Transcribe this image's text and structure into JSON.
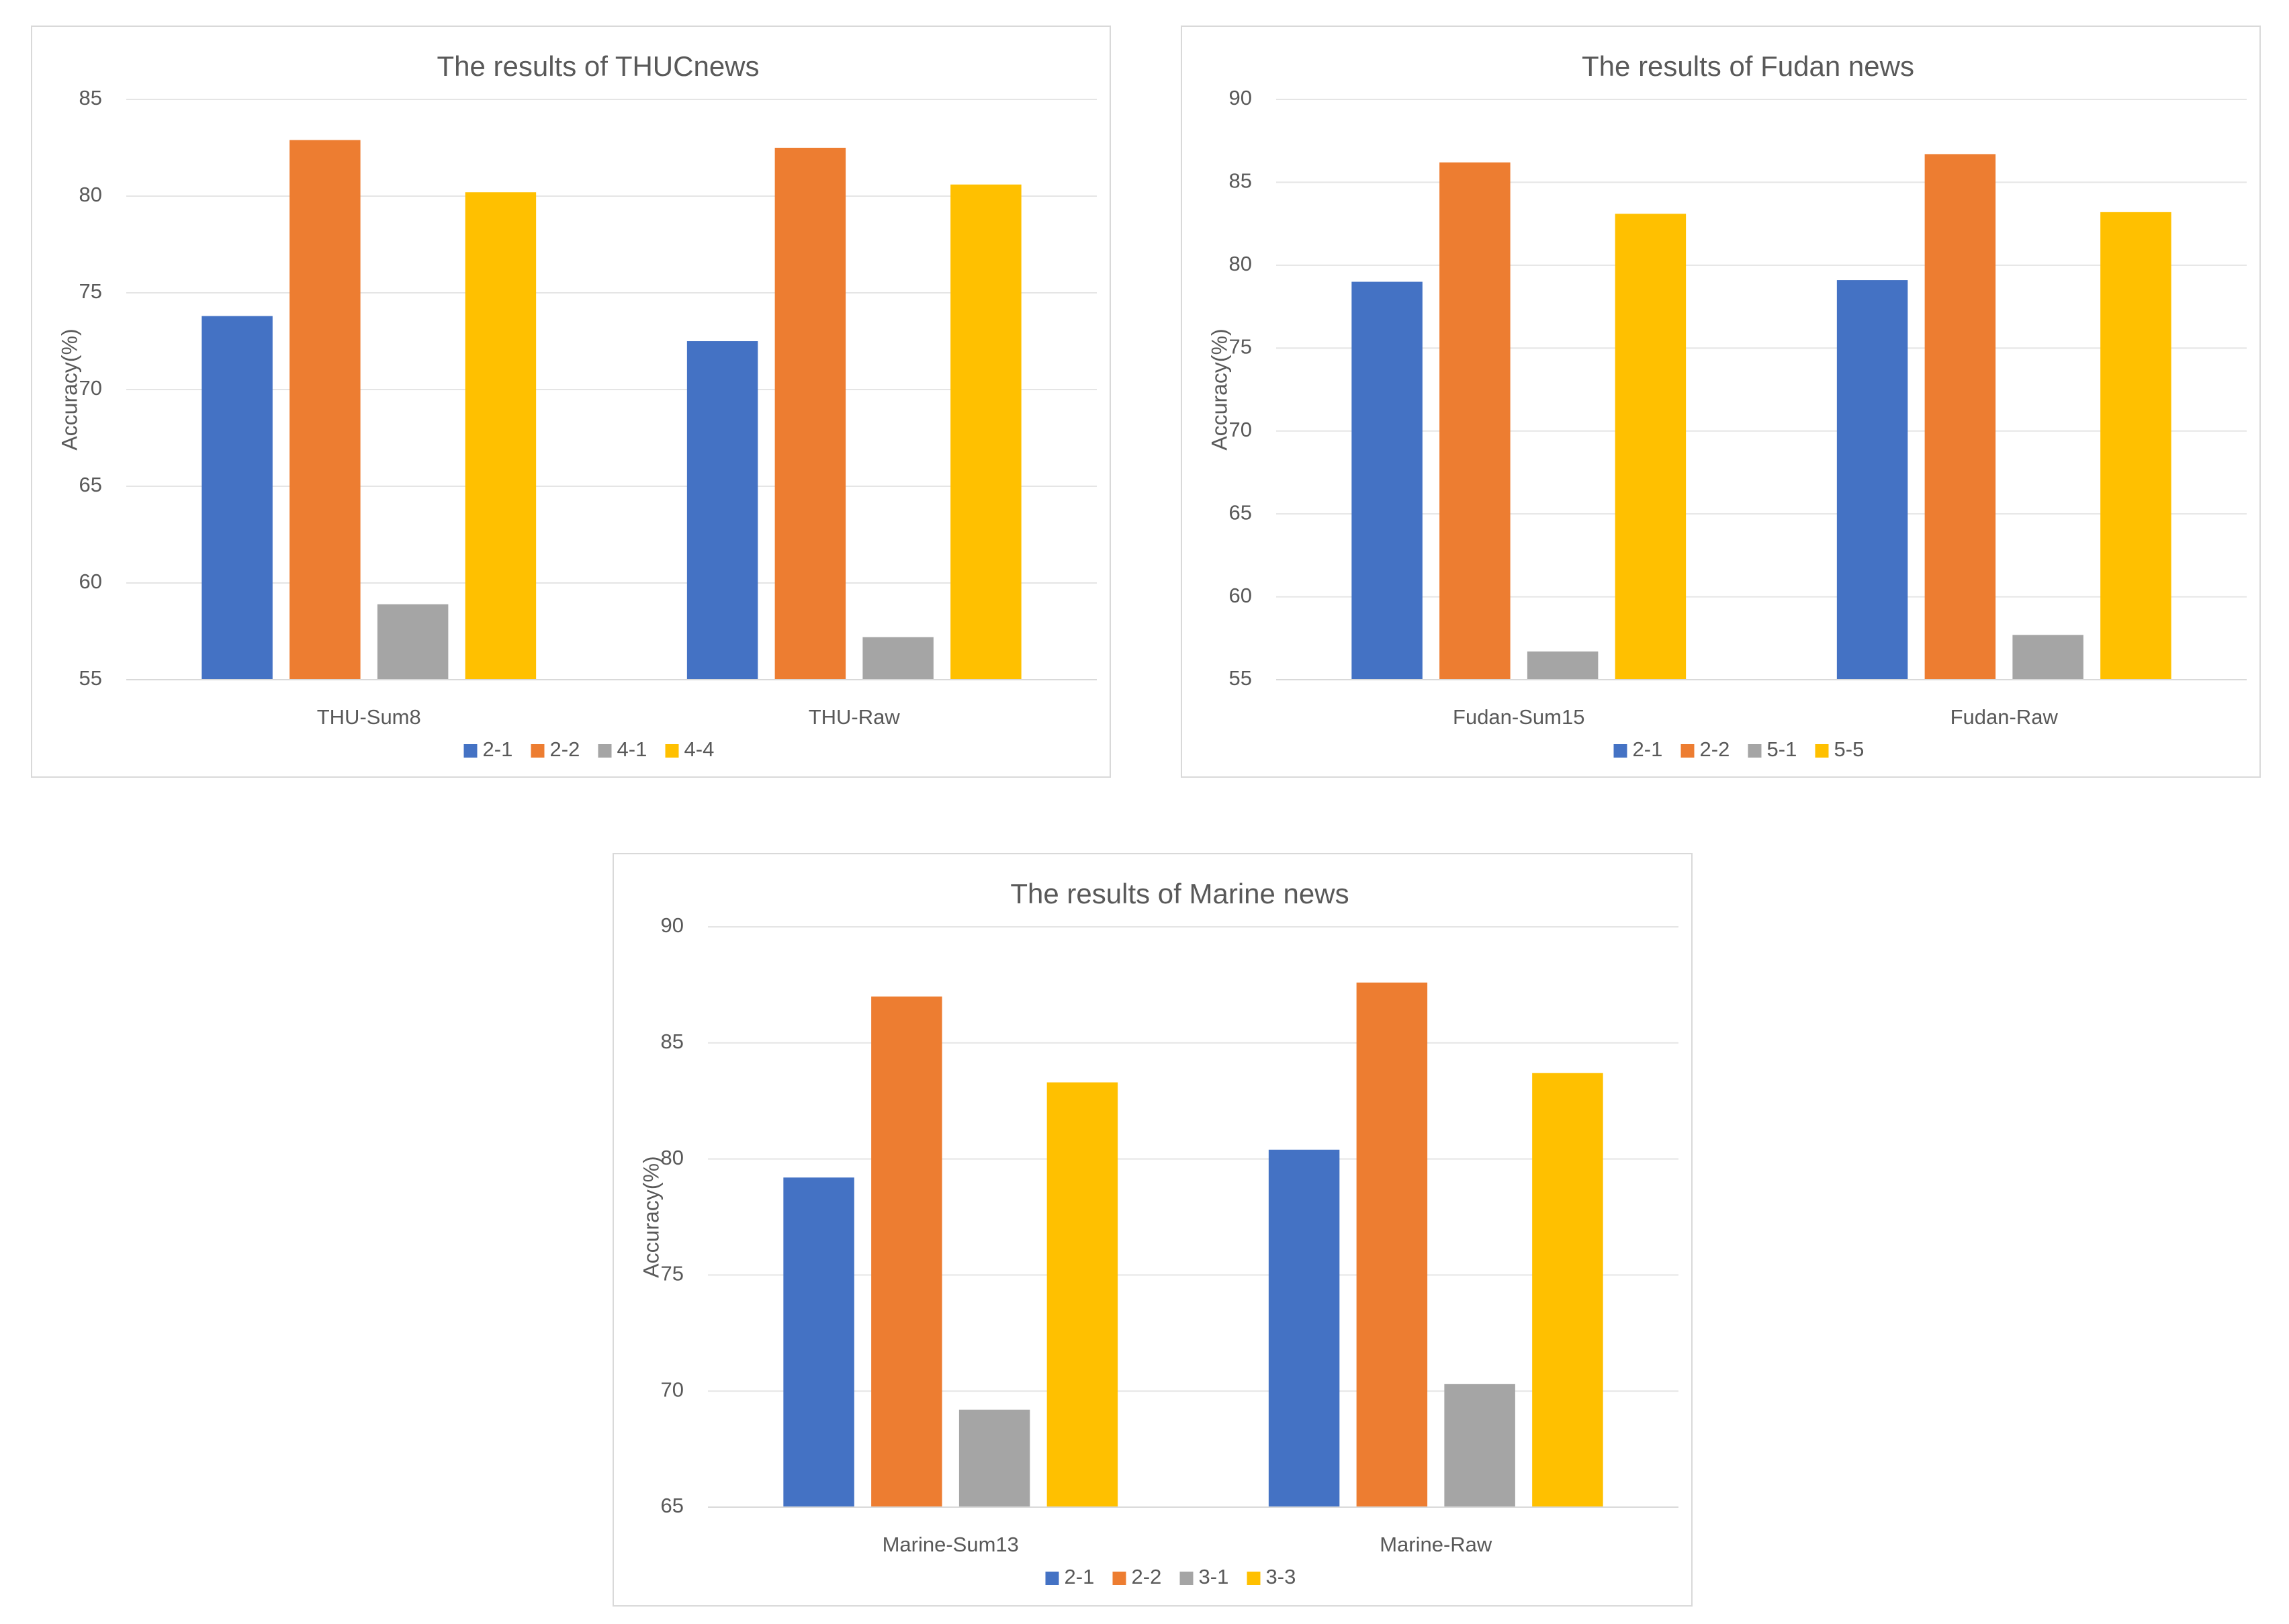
{
  "colors": {
    "blue": "#4472c4",
    "orange": "#ed7d31",
    "gray": "#a5a5a5",
    "gold": "#ffc000",
    "grid": "#e5e5e5",
    "axis": "#d9d9d9",
    "text": "#595959"
  },
  "chart_data": [
    {
      "type": "bar",
      "title": "The results of THUCnews",
      "xlabel": "",
      "ylabel": "Accuracy(%)",
      "ylim": [
        55,
        85
      ],
      "yticks": [
        55,
        60,
        65,
        70,
        75,
        80,
        85
      ],
      "grid": true,
      "legend": "bottom",
      "categories": [
        "THU-Sum8",
        "THU-Raw"
      ],
      "series": [
        {
          "name": "2-1",
          "values": [
            73.8,
            72.5
          ]
        },
        {
          "name": "2-2",
          "values": [
            82.9,
            82.5
          ]
        },
        {
          "name": "4-1",
          "values": [
            58.9,
            57.2
          ]
        },
        {
          "name": "4-4",
          "values": [
            80.2,
            80.6
          ]
        }
      ]
    },
    {
      "type": "bar",
      "title": "The results of Fudan news",
      "xlabel": "",
      "ylabel": "Accuracy(%)",
      "ylim": [
        55,
        90
      ],
      "yticks": [
        55,
        60,
        65,
        70,
        75,
        80,
        85,
        90
      ],
      "grid": true,
      "legend": "bottom",
      "categories": [
        "Fudan-Sum15",
        "Fudan-Raw"
      ],
      "series": [
        {
          "name": "2-1",
          "values": [
            79.0,
            79.1
          ]
        },
        {
          "name": "2-2",
          "values": [
            86.2,
            86.7
          ]
        },
        {
          "name": "5-1",
          "values": [
            56.7,
            57.7
          ]
        },
        {
          "name": "5-5",
          "values": [
            83.1,
            83.2
          ]
        }
      ]
    },
    {
      "type": "bar",
      "title": "The results of Marine news",
      "xlabel": "",
      "ylabel": "Accuracy(%)",
      "ylim": [
        65,
        90
      ],
      "yticks": [
        65,
        70,
        75,
        80,
        85,
        90
      ],
      "grid": true,
      "legend": "bottom",
      "categories": [
        "Marine-Sum13",
        "Marine-Raw"
      ],
      "series": [
        {
          "name": "2-1",
          "values": [
            79.2,
            80.4
          ]
        },
        {
          "name": "2-2",
          "values": [
            87.0,
            87.6
          ]
        },
        {
          "name": "3-1",
          "values": [
            69.2,
            70.3
          ]
        },
        {
          "name": "3-3",
          "values": [
            83.3,
            83.7
          ]
        }
      ]
    }
  ]
}
